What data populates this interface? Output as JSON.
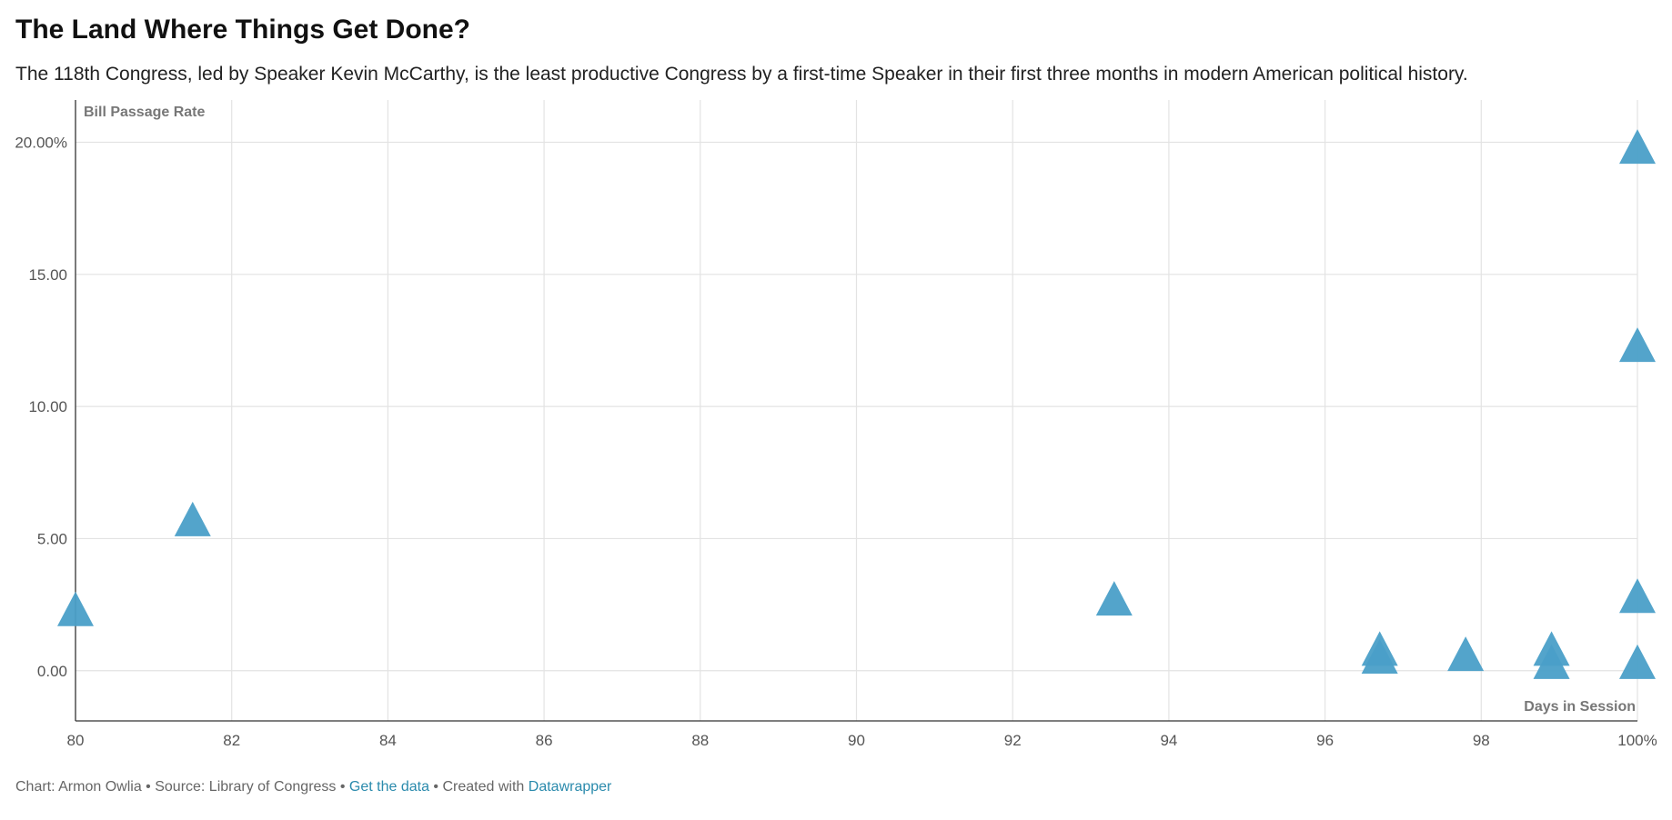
{
  "chart_data": {
    "type": "scatter",
    "title": "The Land Where Things Get Done?",
    "subtitle": "The 118th Congress, led by Speaker Kevin McCarthy, is the least productive Congress by a first-time Speaker in their first three months in modern American political history.",
    "xlabel": "Days in Session",
    "ylabel": "Bill Passage Rate",
    "xlim": [
      80,
      100
    ],
    "ylim": [
      -1.9,
      21.6
    ],
    "x_ticks": [
      80,
      82,
      84,
      86,
      88,
      90,
      92,
      94,
      96,
      98,
      100
    ],
    "x_tick_labels": [
      "80",
      "82",
      "84",
      "86",
      "88",
      "90",
      "92",
      "94",
      "96",
      "98",
      "100%"
    ],
    "y_ticks": [
      0,
      5,
      10,
      15,
      20
    ],
    "y_tick_labels": [
      "0.00",
      "5.00",
      "10.00",
      "15.00",
      "20.00%"
    ],
    "grid": true,
    "marker": "triangle",
    "color": "#4a9fc8",
    "points": [
      {
        "x": 80,
        "y": 2.1
      },
      {
        "x": 81.5,
        "y": 5.5
      },
      {
        "x": 93.3,
        "y": 2.5
      },
      {
        "x": 96.7,
        "y": 0.6
      },
      {
        "x": 96.7,
        "y": 0.3
      },
      {
        "x": 97.8,
        "y": 0.4
      },
      {
        "x": 98.9,
        "y": 0.6
      },
      {
        "x": 98.9,
        "y": 0.1
      },
      {
        "x": 100,
        "y": 19.6
      },
      {
        "x": 100,
        "y": 12.1
      },
      {
        "x": 100,
        "y": 2.6
      },
      {
        "x": 100,
        "y": 0.1
      }
    ]
  },
  "footer": {
    "credit": "Chart: Armon Owlia",
    "separator": " • ",
    "source": "Source: Library of Congress",
    "get_data_link": "Get the data",
    "created_with": "Created with",
    "datawrapper_link": "Datawrapper"
  }
}
